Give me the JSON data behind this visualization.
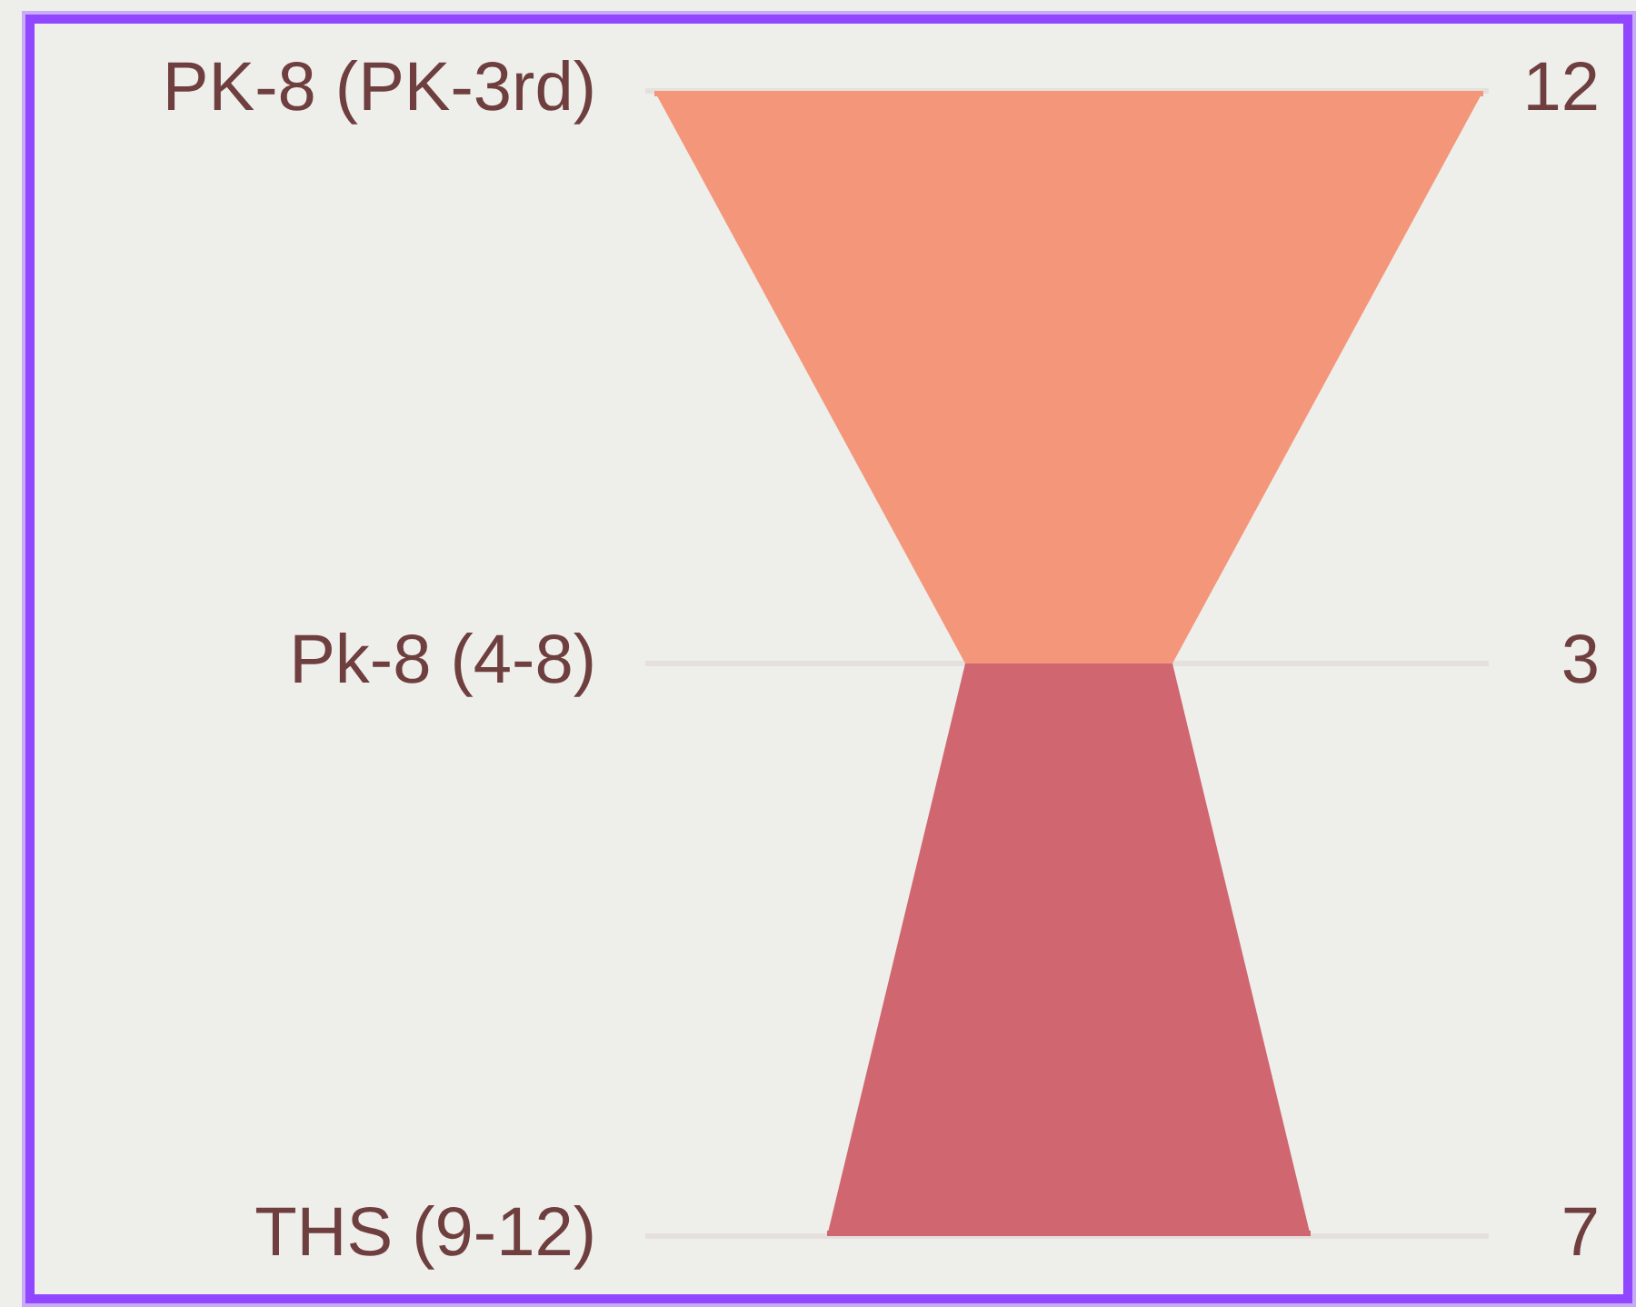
{
  "chart_data": {
    "type": "other",
    "categories": [
      "PK-8 (PK-3rd)",
      "Pk-8 (4-8)",
      "THS (9-12)"
    ],
    "values": [
      12,
      3,
      7
    ],
    "colors": [
      "#f4967a",
      "#d0666f",
      "#d0666f"
    ],
    "data_labels": true
  }
}
